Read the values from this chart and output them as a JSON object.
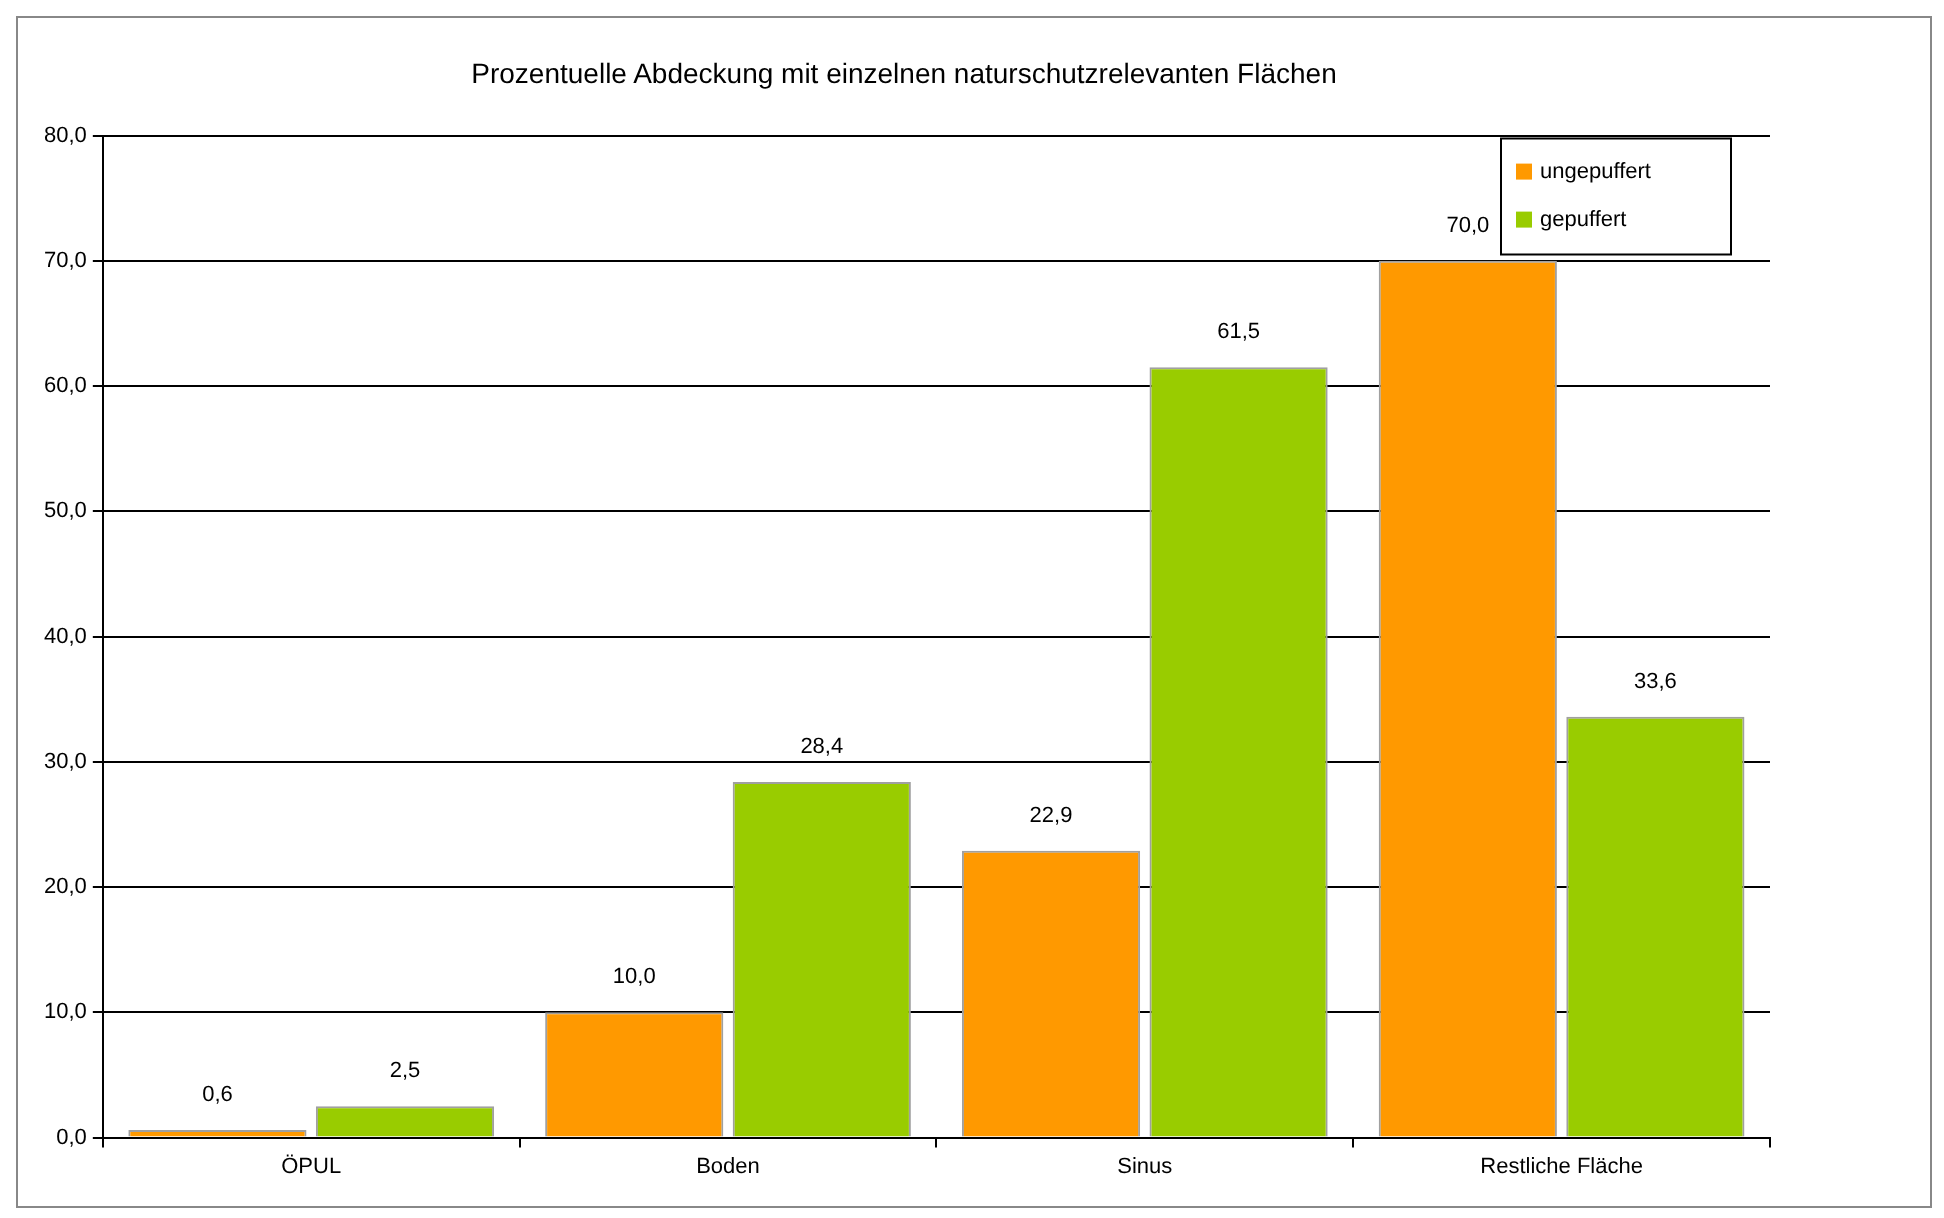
{
  "chart_data": {
    "type": "bar",
    "title": "Prozentuelle Abdeckung mit einzelnen naturschutzrelevanten Flächen",
    "categories": [
      "ÖPUL",
      "Boden",
      "Sinus",
      "Restliche Fläche"
    ],
    "series": [
      {
        "name": "ungepuffert",
        "color": "#ff9900",
        "values": [
          0.6,
          10.0,
          22.9,
          70.0
        ],
        "value_labels": [
          "0,6",
          "10,0",
          "22,9",
          "70,0"
        ]
      },
      {
        "name": "gepuffert",
        "color": "#99cc00",
        "values": [
          2.5,
          28.4,
          61.5,
          33.6
        ],
        "value_labels": [
          "2,5",
          "28,4",
          "61,5",
          "33,6"
        ]
      }
    ],
    "ylim": [
      0,
      80
    ],
    "yticks": [
      {
        "value": 0,
        "label": "0,0"
      },
      {
        "value": 10,
        "label": "10,0"
      },
      {
        "value": 20,
        "label": "20,0"
      },
      {
        "value": 30,
        "label": "30,0"
      },
      {
        "value": 40,
        "label": "40,0"
      },
      {
        "value": 50,
        "label": "50,0"
      },
      {
        "value": 60,
        "label": "60,0"
      },
      {
        "value": 70,
        "label": "70,0"
      },
      {
        "value": 80,
        "label": "80,0"
      }
    ],
    "grid": "y",
    "legend": "top right"
  }
}
